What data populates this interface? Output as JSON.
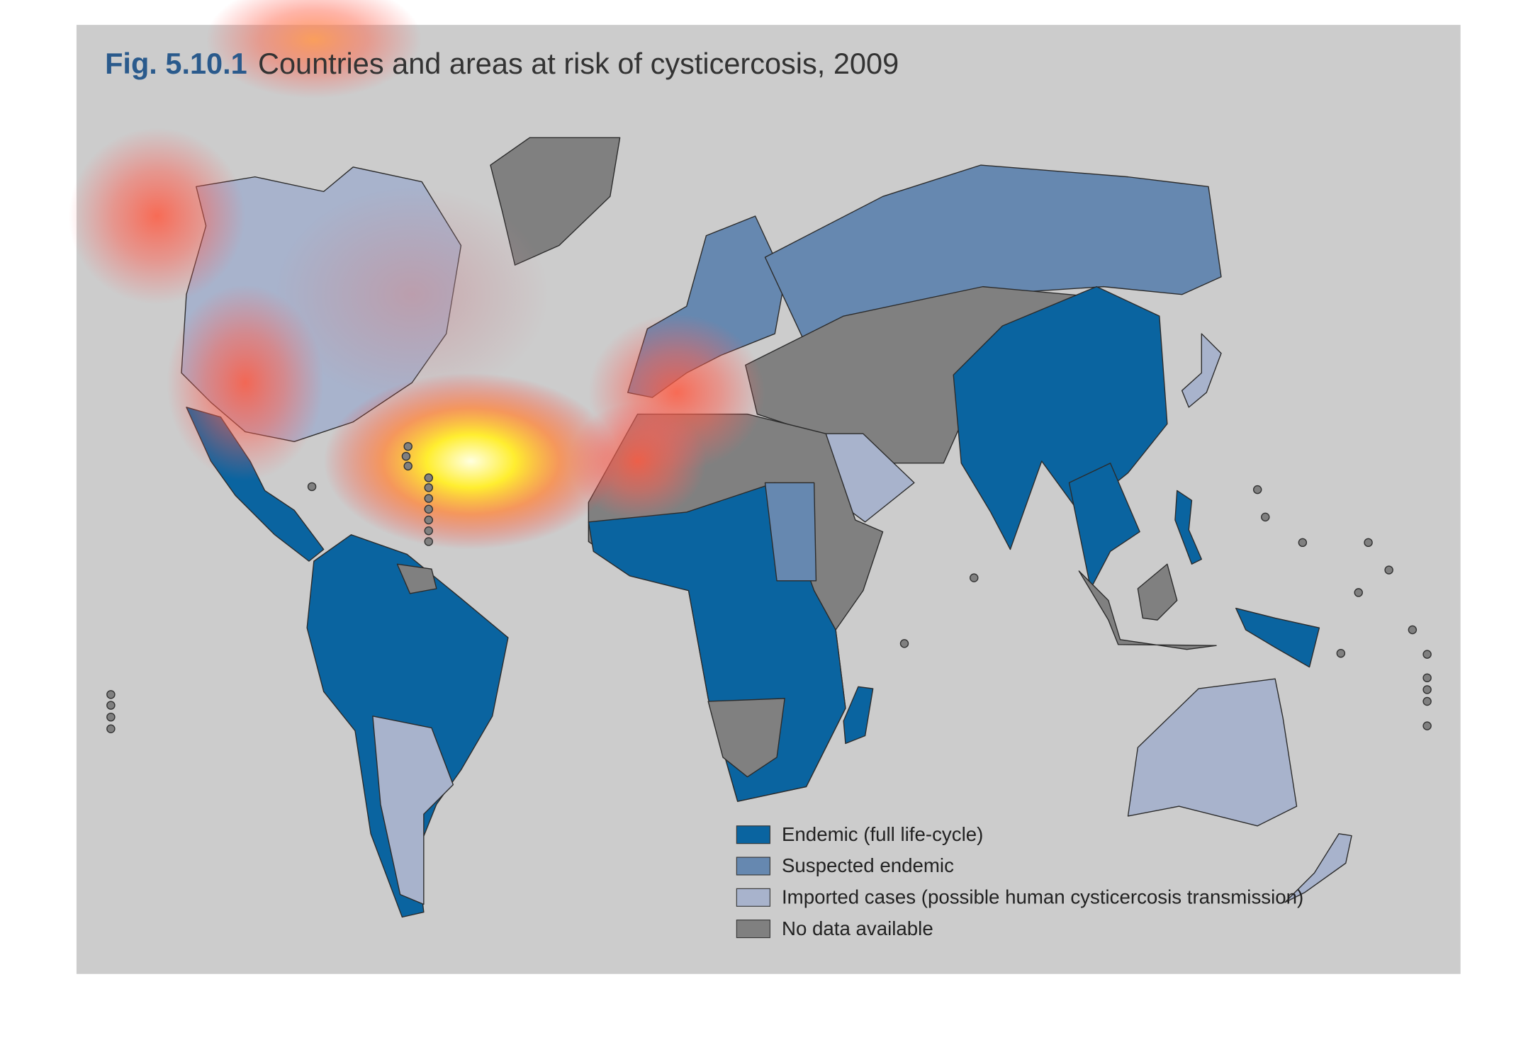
{
  "header": {
    "figure": "Fig. 5.10.1",
    "title": "Countries and areas at risk of cysticercosis, 2009"
  },
  "legend": {
    "items": [
      {
        "label": "Endemic (full life-cycle)",
        "color": "#0a64a0"
      },
      {
        "label": "Suspected endemic",
        "color": "#6688b0"
      },
      {
        "label": "Imported cases (possible human cysticercosis transmission)",
        "color": "#a8b3cc"
      },
      {
        "label": "No data available",
        "color": "#808080"
      }
    ]
  }
}
